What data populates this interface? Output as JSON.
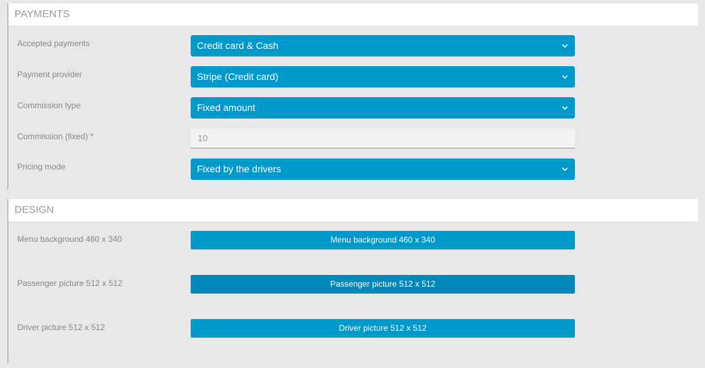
{
  "payments": {
    "title": "PAYMENTS",
    "fields": [
      {
        "label": "Accepted payments",
        "value": "Credit card & Cash"
      },
      {
        "label": "Payment provider",
        "value": "Stripe (Credit card)"
      },
      {
        "label": "Commission type",
        "value": "Fixed amount"
      },
      {
        "label": "Commission (fixed) *",
        "value": "10"
      },
      {
        "label": "Pricing mode",
        "value": "Fixed by the drivers"
      }
    ]
  },
  "design": {
    "title": "DESIGN",
    "fields": [
      {
        "label": "Menu background 460 x 340",
        "button": "Menu background 460 x 340"
      },
      {
        "label": "Passenger picture 512 x 512",
        "button": "Passenger picture 512 x 512"
      },
      {
        "label": "Driver picture 512 x 512",
        "button": "Driver picture 512 x 512"
      }
    ]
  },
  "colors": {
    "accent": "#0099cc",
    "accent_hover": "#0088bb"
  },
  "icons": {
    "dropdown": "chevron-down-icon"
  }
}
